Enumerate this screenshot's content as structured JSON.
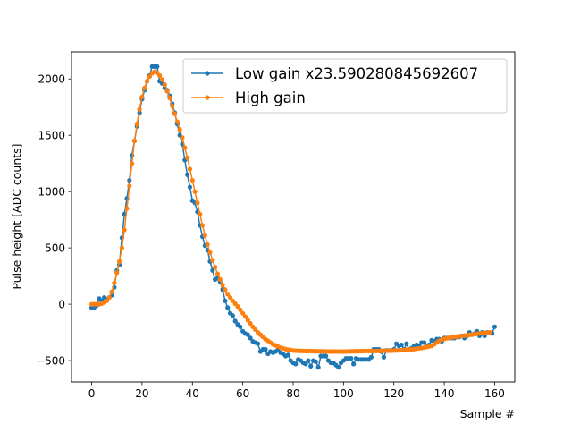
{
  "chart_data": {
    "type": "line",
    "title": "",
    "xlabel": "Sample #",
    "ylabel": "Pulse height [ADC counts]",
    "xlim": [
      -8,
      168
    ],
    "ylim": [
      -690,
      2240
    ],
    "xticks": [
      0,
      20,
      40,
      60,
      80,
      100,
      120,
      140,
      160
    ],
    "yticks": [
      -500,
      0,
      500,
      1000,
      1500,
      2000
    ],
    "xtick_labels": [
      "0",
      "20",
      "40",
      "60",
      "80",
      "100",
      "120",
      "140",
      "160"
    ],
    "ytick_labels": [
      "−500",
      "0",
      "500",
      "1000",
      "1500",
      "2000"
    ],
    "grid": false,
    "legend_position": "upper-right",
    "series": [
      {
        "name": "Low gain x23.590280845692607",
        "color": "#1f77b4",
        "marker": "dot",
        "values": [
          -30,
          -30,
          -10,
          50,
          30,
          60,
          40,
          60,
          80,
          150,
          300,
          350,
          590,
          800,
          940,
          1100,
          1320,
          1450,
          1580,
          1700,
          1820,
          1900,
          1980,
          2030,
          2110,
          2110,
          2110,
          1980,
          1960,
          1920,
          1900,
          1850,
          1780,
          1700,
          1600,
          1500,
          1420,
          1280,
          1150,
          1040,
          920,
          900,
          820,
          700,
          600,
          520,
          480,
          380,
          300,
          220,
          230,
          200,
          130,
          30,
          -30,
          -80,
          -100,
          -150,
          -180,
          -200,
          -240,
          -260,
          -270,
          -300,
          -330,
          -340,
          -350,
          -420,
          -400,
          -400,
          -440,
          -420,
          -430,
          -420,
          -400,
          -430,
          -440,
          -460,
          -450,
          -500,
          -520,
          -530,
          -490,
          -500,
          -520,
          -530,
          -500,
          -550,
          -500,
          -510,
          -560,
          -460,
          -460,
          -460,
          -500,
          -520,
          -520,
          -540,
          -560,
          -520,
          -500,
          -480,
          -480,
          -480,
          -530,
          -480,
          -490,
          -490,
          -490,
          -490,
          -490,
          -470,
          -400,
          -400,
          -400,
          -420,
          -470,
          -410,
          -410,
          -410,
          -400,
          -350,
          -370,
          -360,
          -400,
          -350,
          -400,
          -390,
          -370,
          -360,
          -370,
          -340,
          -340,
          -370,
          -360,
          -320,
          -330,
          -310,
          -310,
          -330,
          -300,
          -300,
          -300,
          -300,
          -300,
          -290,
          -290,
          -280,
          -300,
          -280,
          -250,
          -270,
          -260,
          -240,
          -280,
          -250,
          -280,
          -250,
          -250,
          -260,
          -200
        ]
      },
      {
        "name": "High gain",
        "color": "#ff7f0e",
        "marker": "dot",
        "values": [
          0,
          0,
          0,
          0,
          5,
          15,
          30,
          60,
          110,
          190,
          280,
          380,
          500,
          660,
          850,
          1050,
          1250,
          1450,
          1600,
          1730,
          1840,
          1920,
          1980,
          2020,
          2050,
          2065,
          2055,
          2030,
          1995,
          1950,
          1890,
          1830,
          1760,
          1690,
          1620,
          1550,
          1480,
          1390,
          1300,
          1200,
          1100,
          1000,
          900,
          800,
          700,
          610,
          530,
          460,
          390,
          330,
          270,
          220,
          170,
          130,
          90,
          60,
          30,
          5,
          -20,
          -50,
          -80,
          -110,
          -140,
          -170,
          -200,
          -225,
          -250,
          -270,
          -290,
          -310,
          -325,
          -340,
          -355,
          -365,
          -375,
          -385,
          -392,
          -398,
          -403,
          -407,
          -410,
          -412,
          -413,
          -414,
          -415,
          -415,
          -416,
          -416,
          -417,
          -417,
          -418,
          -418,
          -418,
          -419,
          -419,
          -420,
          -420,
          -420,
          -420,
          -420,
          -420,
          -419,
          -419,
          -418,
          -418,
          -417,
          -417,
          -416,
          -416,
          -415,
          -415,
          -415,
          -415,
          -415,
          -414,
          -414,
          -413,
          -413,
          -412,
          -412,
          -411,
          -410,
          -409,
          -408,
          -406,
          -404,
          -402,
          -400,
          -398,
          -395,
          -392,
          -389,
          -385,
          -380,
          -375,
          -370,
          -355,
          -340,
          -325,
          -315,
          -308,
          -302,
          -298,
          -294,
          -290,
          -287,
          -284,
          -281,
          -278,
          -275,
          -272,
          -269,
          -266,
          -263,
          -260,
          -257,
          -254,
          -251,
          -250
        ]
      }
    ]
  }
}
